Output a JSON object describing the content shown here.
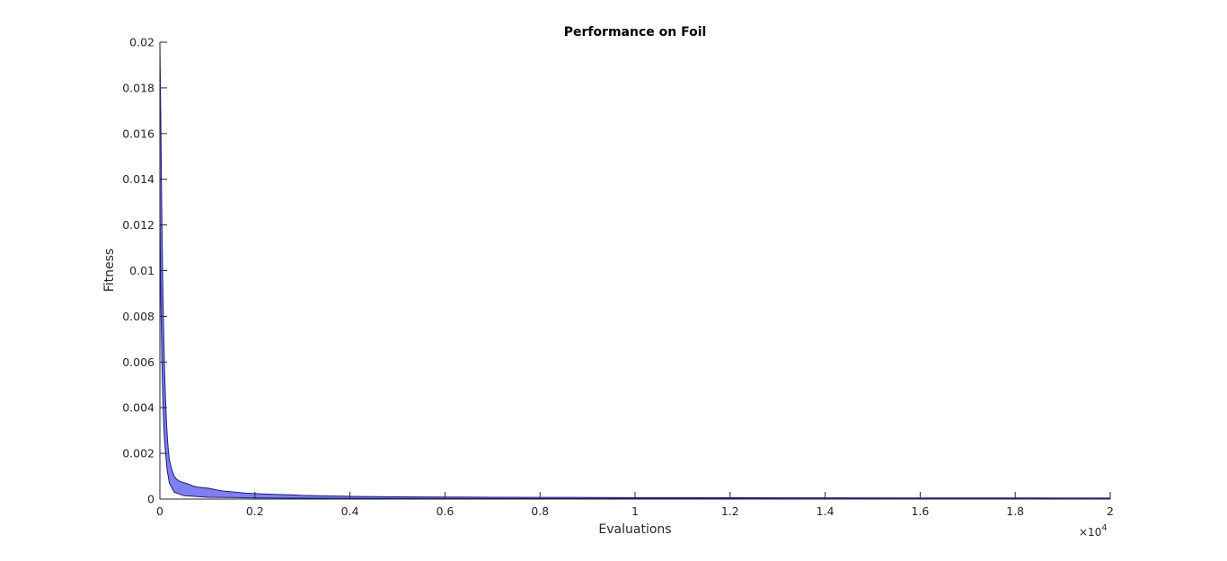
{
  "chart_data": {
    "type": "area",
    "title": "Performance on Foil",
    "xlabel": "Evaluations",
    "ylabel": "Fitness",
    "xlim": [
      0,
      20000
    ],
    "ylim": [
      0,
      0.02
    ],
    "x_ticks": [
      0,
      2000,
      4000,
      6000,
      8000,
      10000,
      12000,
      14000,
      16000,
      18000,
      20000
    ],
    "x_tick_labels": [
      "0",
      "0.2",
      "0.4",
      "0.6",
      "0.8",
      "1",
      "1.2",
      "1.4",
      "1.6",
      "1.8",
      "2"
    ],
    "x_exponent_label": "×10",
    "x_exponent_power": "4",
    "y_ticks": [
      0,
      0.002,
      0.004,
      0.006,
      0.008,
      0.01,
      0.012,
      0.014,
      0.016,
      0.018,
      0.02
    ],
    "y_tick_labels": [
      "0",
      "0.002",
      "0.004",
      "0.006",
      "0.008",
      "0.01",
      "0.012",
      "0.014",
      "0.016",
      "0.018",
      "0.02"
    ],
    "grid": false,
    "fill_color": "#7f7ff0",
    "line_color": "#1a1a80",
    "series": [
      {
        "upper": {
          "x": [
            0,
            20,
            40,
            60,
            80,
            100,
            120,
            140,
            160,
            180,
            200,
            250,
            300,
            350,
            400,
            450,
            500,
            600,
            700,
            800,
            900,
            1000,
            1100,
            1200,
            1300,
            1400,
            1500,
            1600,
            1800,
            2000,
            2200,
            2500,
            2800,
            3000,
            3500,
            4000,
            5000,
            6000,
            7000,
            8000,
            9000,
            10000,
            12000,
            14000,
            16000,
            18000,
            20000
          ],
          "y": [
            0.02,
            0.0165,
            0.0125,
            0.0095,
            0.0072,
            0.0055,
            0.0043,
            0.0033,
            0.0026,
            0.0021,
            0.0017,
            0.0013,
            0.001,
            0.00087,
            0.0008,
            0.00075,
            0.00072,
            0.00066,
            0.00057,
            0.00052,
            0.0005,
            0.00048,
            0.00044,
            0.0004,
            0.00036,
            0.00034,
            0.00032,
            0.0003,
            0.00026,
            0.00024,
            0.00022,
            0.0002,
            0.00018,
            0.00016,
            0.00014,
            0.00012,
            0.0001,
            9e-05,
            8e-05,
            7.5e-05,
            7e-05,
            6.5e-05,
            6e-05,
            5.5e-05,
            5e-05,
            4.8e-05,
            4.5e-05
          ]
        },
        "lower": {
          "x": [
            0,
            20,
            40,
            60,
            80,
            100,
            150,
            200,
            300,
            500,
            1000,
            2000,
            4000,
            8000,
            14000,
            20000
          ],
          "y": [
            0.0125,
            0.0087,
            0.0062,
            0.0045,
            0.0033,
            0.0025,
            0.0013,
            0.0007,
            0.0003,
            0.00015,
            8e-05,
            5e-05,
            3e-05,
            2e-05,
            1.5e-05,
            1e-05
          ]
        }
      }
    ]
  }
}
